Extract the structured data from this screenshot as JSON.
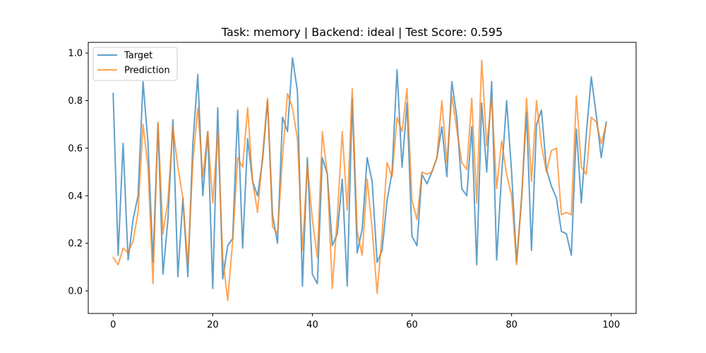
{
  "chart_data": {
    "type": "line",
    "title": "Task: memory | Backend: ideal | Test Score: 0.595",
    "xlabel": "",
    "ylabel": "",
    "xlim": [
      -5,
      105
    ],
    "ylim": [
      -0.095,
      1.045
    ],
    "x_ticks": [
      0,
      20,
      40,
      60,
      80,
      100
    ],
    "y_ticks": [
      0.0,
      0.2,
      0.4,
      0.6,
      0.8,
      1.0
    ],
    "x_tick_labels": [
      "0",
      "20",
      "40",
      "60",
      "80",
      "100"
    ],
    "y_tick_labels": [
      "0.0",
      "0.2",
      "0.4",
      "0.6",
      "0.8",
      "1.0"
    ],
    "grid": false,
    "legend_position": "top-left",
    "x": [
      0,
      1,
      2,
      3,
      4,
      5,
      6,
      7,
      8,
      9,
      10,
      11,
      12,
      13,
      14,
      15,
      16,
      17,
      18,
      19,
      20,
      21,
      22,
      23,
      24,
      25,
      26,
      27,
      28,
      29,
      30,
      31,
      32,
      33,
      34,
      35,
      36,
      37,
      38,
      39,
      40,
      41,
      42,
      43,
      44,
      45,
      46,
      47,
      48,
      49,
      50,
      51,
      52,
      53,
      54,
      55,
      56,
      57,
      58,
      59,
      60,
      61,
      62,
      63,
      64,
      65,
      66,
      67,
      68,
      69,
      70,
      71,
      72,
      73,
      74,
      75,
      76,
      77,
      78,
      79,
      80,
      81,
      82,
      83,
      84,
      85,
      86,
      87,
      88,
      89,
      90,
      91,
      92,
      93,
      94,
      95,
      96,
      97,
      98,
      99
    ],
    "series": [
      {
        "name": "Target",
        "color": "#1f77b4",
        "values": [
          0.83,
          0.15,
          0.62,
          0.13,
          0.3,
          0.4,
          0.88,
          0.62,
          0.12,
          0.7,
          0.07,
          0.3,
          0.72,
          0.06,
          0.39,
          0.06,
          0.62,
          0.91,
          0.4,
          0.67,
          0.01,
          0.77,
          0.05,
          0.19,
          0.22,
          0.76,
          0.18,
          0.64,
          0.46,
          0.4,
          0.55,
          0.8,
          0.32,
          0.2,
          0.73,
          0.67,
          0.98,
          0.84,
          0.02,
          0.56,
          0.07,
          0.03,
          0.56,
          0.49,
          0.19,
          0.24,
          0.47,
          0.02,
          0.81,
          0.16,
          0.26,
          0.56,
          0.46,
          0.12,
          0.17,
          0.38,
          0.5,
          0.93,
          0.52,
          0.79,
          0.23,
          0.19,
          0.49,
          0.45,
          0.5,
          0.56,
          0.69,
          0.48,
          0.88,
          0.73,
          0.43,
          0.4,
          0.69,
          0.11,
          0.79,
          0.5,
          0.88,
          0.13,
          0.49,
          0.8,
          0.5,
          0.12,
          0.39,
          0.75,
          0.17,
          0.7,
          0.76,
          0.51,
          0.44,
          0.39,
          0.25,
          0.24,
          0.15,
          0.68,
          0.37,
          0.66,
          0.9,
          0.74,
          0.56,
          0.71
        ]
      },
      {
        "name": "Prediction",
        "color": "#ff7f0e",
        "values": [
          0.14,
          0.11,
          0.18,
          0.16,
          0.21,
          0.33,
          0.7,
          0.52,
          0.03,
          0.71,
          0.24,
          0.38,
          0.69,
          0.52,
          0.39,
          0.11,
          0.54,
          0.77,
          0.48,
          0.67,
          0.37,
          0.67,
          0.14,
          -0.04,
          0.21,
          0.56,
          0.52,
          0.77,
          0.46,
          0.33,
          0.57,
          0.81,
          0.27,
          0.24,
          0.56,
          0.83,
          0.77,
          0.64,
          0.17,
          0.53,
          0.3,
          0.14,
          0.67,
          0.49,
          0.01,
          0.31,
          0.67,
          0.34,
          0.85,
          0.25,
          0.15,
          0.47,
          0.26,
          -0.01,
          0.24,
          0.54,
          0.48,
          0.73,
          0.67,
          0.85,
          0.38,
          0.3,
          0.5,
          0.49,
          0.5,
          0.56,
          0.8,
          0.54,
          0.82,
          0.68,
          0.54,
          0.51,
          0.81,
          0.37,
          0.97,
          0.61,
          0.81,
          0.43,
          0.63,
          0.49,
          0.4,
          0.11,
          0.38,
          0.81,
          0.46,
          0.8,
          0.61,
          0.5,
          0.59,
          0.6,
          0.32,
          0.33,
          0.32,
          0.82,
          0.52,
          0.49,
          0.73,
          0.71,
          0.62,
          0.7
        ]
      }
    ]
  }
}
